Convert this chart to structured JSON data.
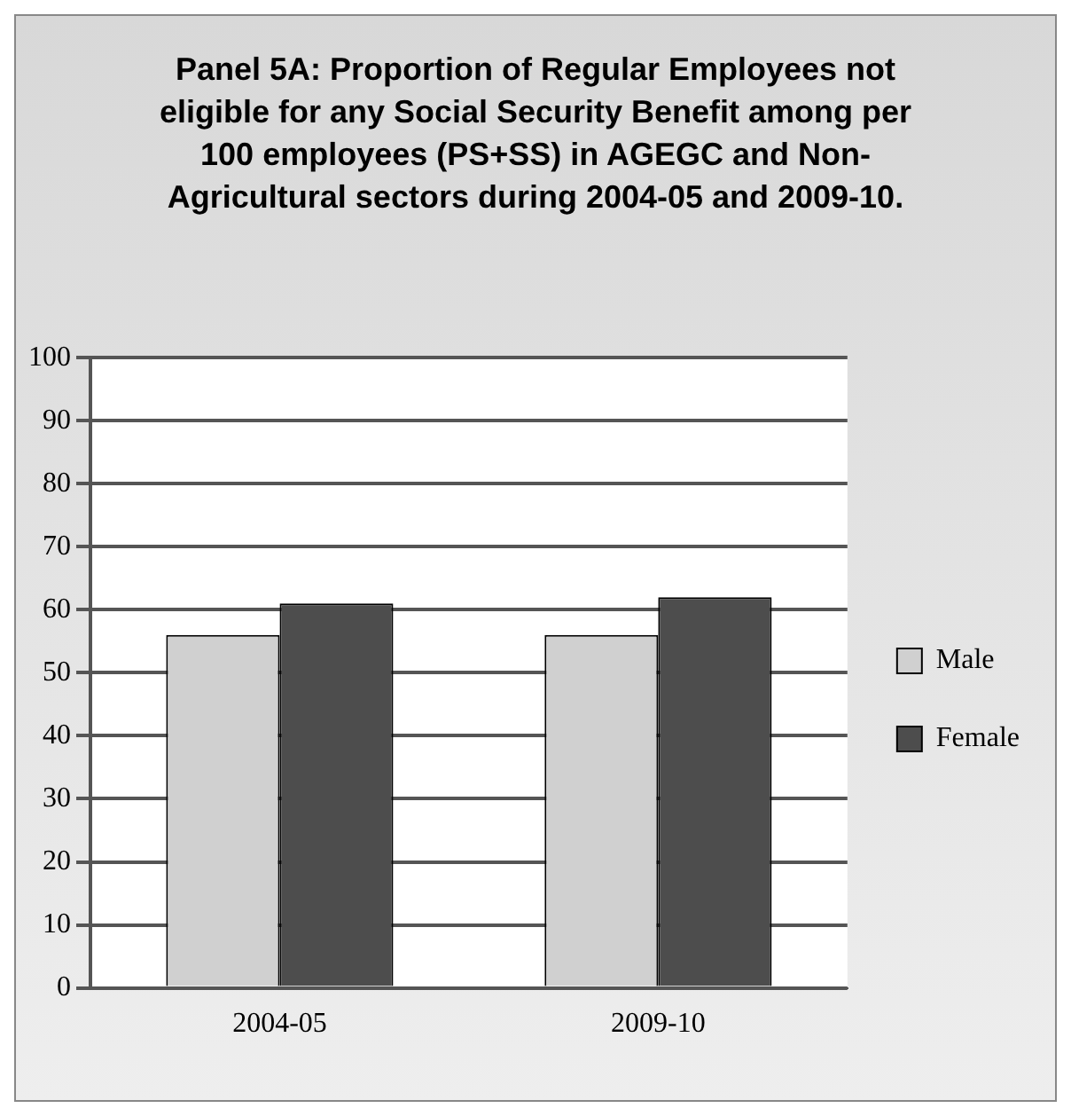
{
  "chart_data": {
    "type": "bar",
    "title": "Panel 5A: Proportion of Regular Employees not eligible for any Social Security Benefit among per 100 employees (PS+SS) in AGEGC and Non-Agricultural sectors during 2004-05 and 2009-10.",
    "categories": [
      "2004-05",
      "2009-10"
    ],
    "series": [
      {
        "name": "Male",
        "color": "#d0d0d0",
        "values": [
          56,
          56
        ]
      },
      {
        "name": "Female",
        "color": "#4d4d4d",
        "values": [
          61,
          62
        ]
      }
    ],
    "ylim": [
      0,
      100
    ],
    "yticks": [
      0,
      10,
      20,
      30,
      40,
      50,
      60,
      70,
      80,
      90,
      100
    ],
    "grid": "y",
    "legend": "right"
  }
}
